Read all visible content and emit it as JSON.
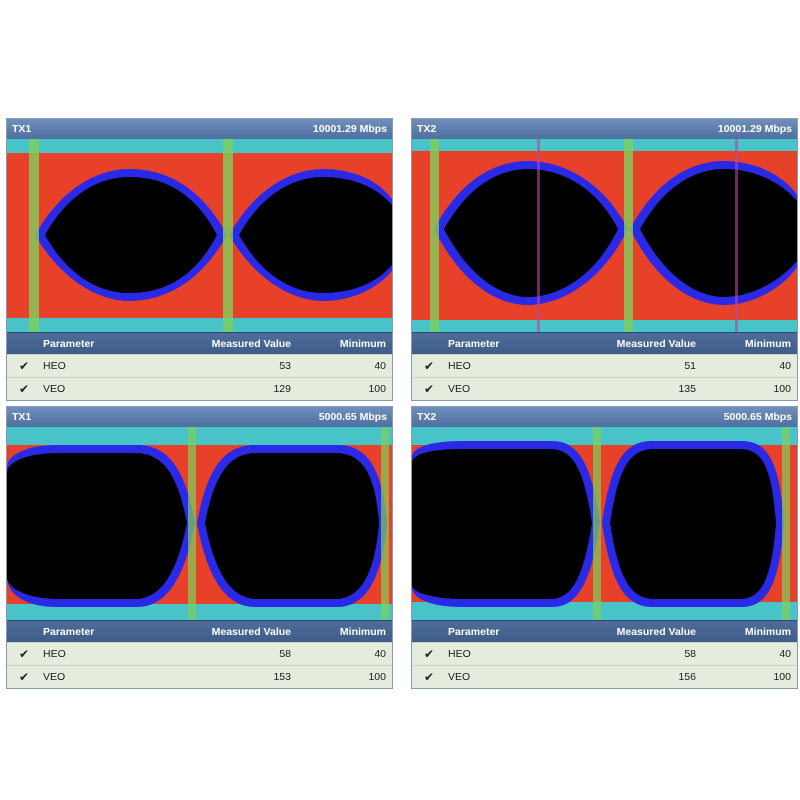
{
  "panels": [
    {
      "channel": "TX1",
      "rate": "10001.29 Mbps",
      "columns": {
        "param": "Parameter",
        "measured": "Measured Value",
        "min": "Minimum"
      },
      "rows": [
        {
          "param": "HEO",
          "measured": "53",
          "min": "40"
        },
        {
          "param": "VEO",
          "measured": "129",
          "min": "100"
        }
      ]
    },
    {
      "channel": "TX2",
      "rate": "10001.29 Mbps",
      "columns": {
        "param": "Parameter",
        "measured": "Measured Value",
        "min": "Minimum"
      },
      "rows": [
        {
          "param": "HEO",
          "measured": "51",
          "min": "40"
        },
        {
          "param": "VEO",
          "measured": "135",
          "min": "100"
        }
      ]
    },
    {
      "channel": "TX1",
      "rate": "5000.65 Mbps",
      "columns": {
        "param": "Parameter",
        "measured": "Measured Value",
        "min": "Minimum"
      },
      "rows": [
        {
          "param": "HEO",
          "measured": "58",
          "min": "40"
        },
        {
          "param": "VEO",
          "measured": "153",
          "min": "100"
        }
      ]
    },
    {
      "channel": "TX2",
      "rate": "5000.65 Mbps",
      "columns": {
        "param": "Parameter",
        "measured": "Measured Value",
        "min": "Minimum"
      },
      "rows": [
        {
          "param": "HEO",
          "measured": "58",
          "min": "40"
        },
        {
          "param": "VEO",
          "measured": "156",
          "min": "100"
        }
      ]
    }
  ],
  "icons": {
    "row_status": "checkmark-icon"
  },
  "colors": {
    "eye_background": "#e8412a",
    "eye_opening": "#000000",
    "eye_edge": "#2a2ae6",
    "eye_rail": "#48c4c8"
  }
}
